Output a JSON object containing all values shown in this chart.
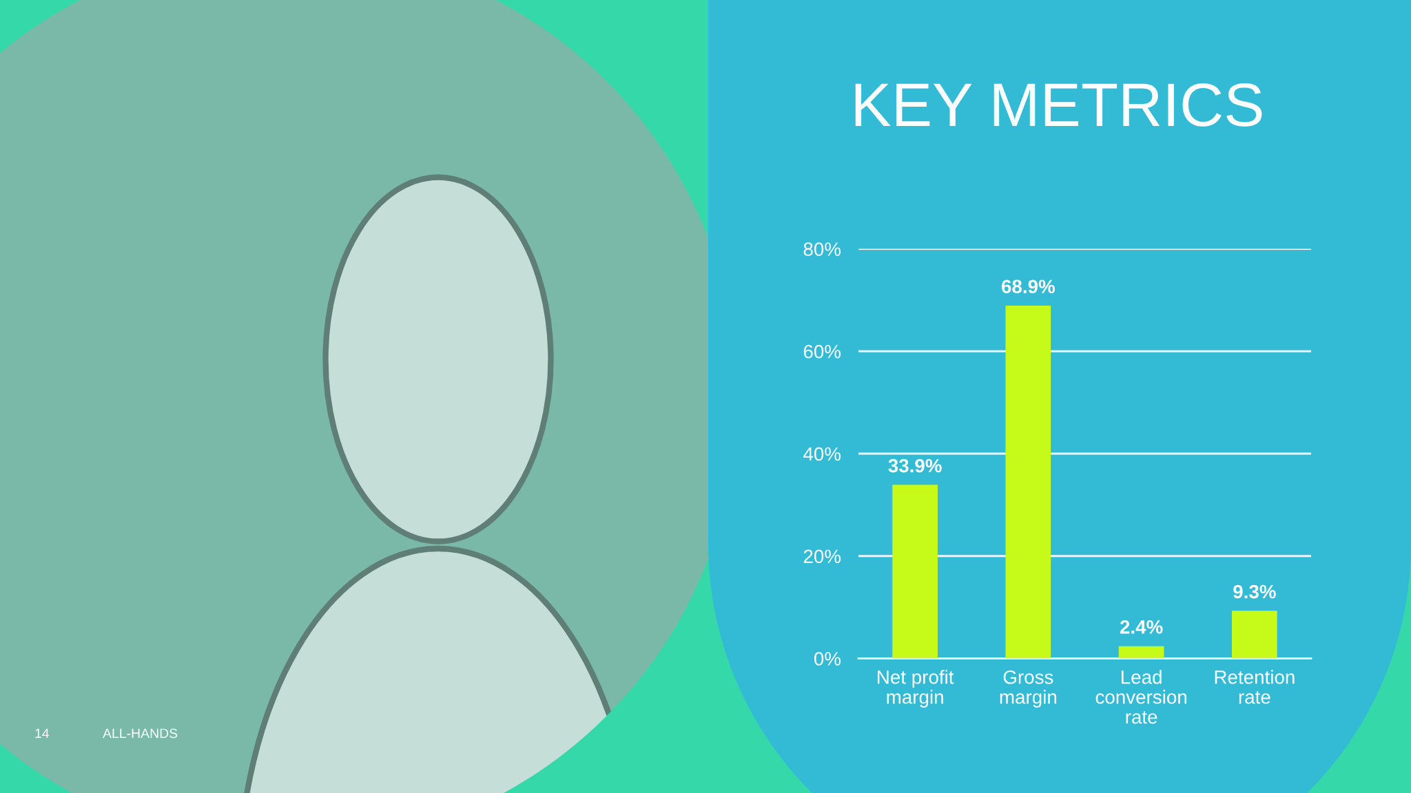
{
  "chart_data": {
    "type": "bar",
    "title": "KEY METRICS",
    "categories": [
      "Net profit\nmargin",
      "Gross\nmargin",
      "Lead\nconversion\nrate",
      "Retention\nrate"
    ],
    "values": [
      33.9,
      68.9,
      2.4,
      9.3
    ],
    "value_labels": [
      "33.9%",
      "68.9%",
      "2.4%",
      "9.3%"
    ],
    "color": "#c6fb19",
    "ylim": [
      0,
      80
    ],
    "yticks": [
      {
        "value": 0,
        "label": "0%"
      },
      {
        "value": 20,
        "label": "20%"
      },
      {
        "value": 40,
        "label": "40%"
      },
      {
        "value": 60,
        "label": "60%"
      },
      {
        "value": 80,
        "label": "80%"
      }
    ],
    "grid": "y",
    "annotations": [
      "14",
      "ALL-HANDS"
    ]
  }
}
